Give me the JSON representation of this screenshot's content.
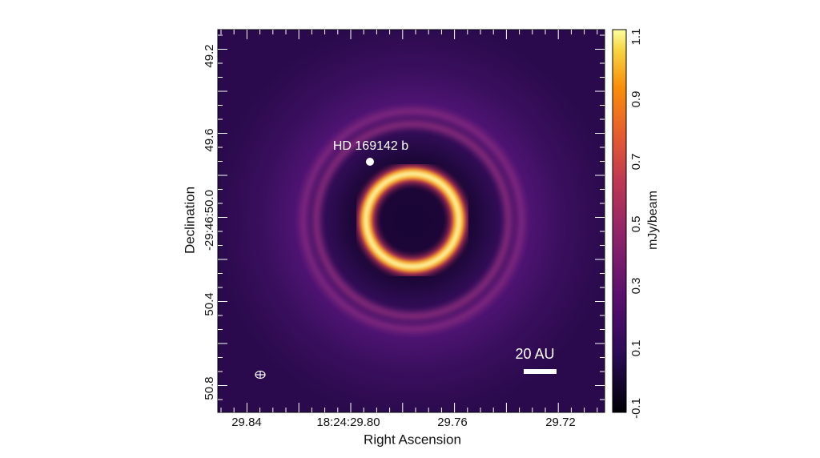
{
  "figure": {
    "x_axis_label": "Right Ascension",
    "y_axis_label": "Declination",
    "x_tick_labels": [
      "29.84",
      "18:24:29.80",
      "29.76",
      "29.72"
    ],
    "y_tick_labels": [
      "49.2",
      "49.6",
      "-29:46:50.0",
      "50.4",
      "50.8"
    ],
    "colorbar_label": "mJy/beam",
    "colorbar_tick_labels": [
      "1.1",
      "0.9",
      "0.7",
      "0.5",
      "0.3",
      "0.1",
      "-0.1"
    ],
    "planet_label": "HD 169142 b",
    "scale_bar_label": "20 AU"
  }
}
